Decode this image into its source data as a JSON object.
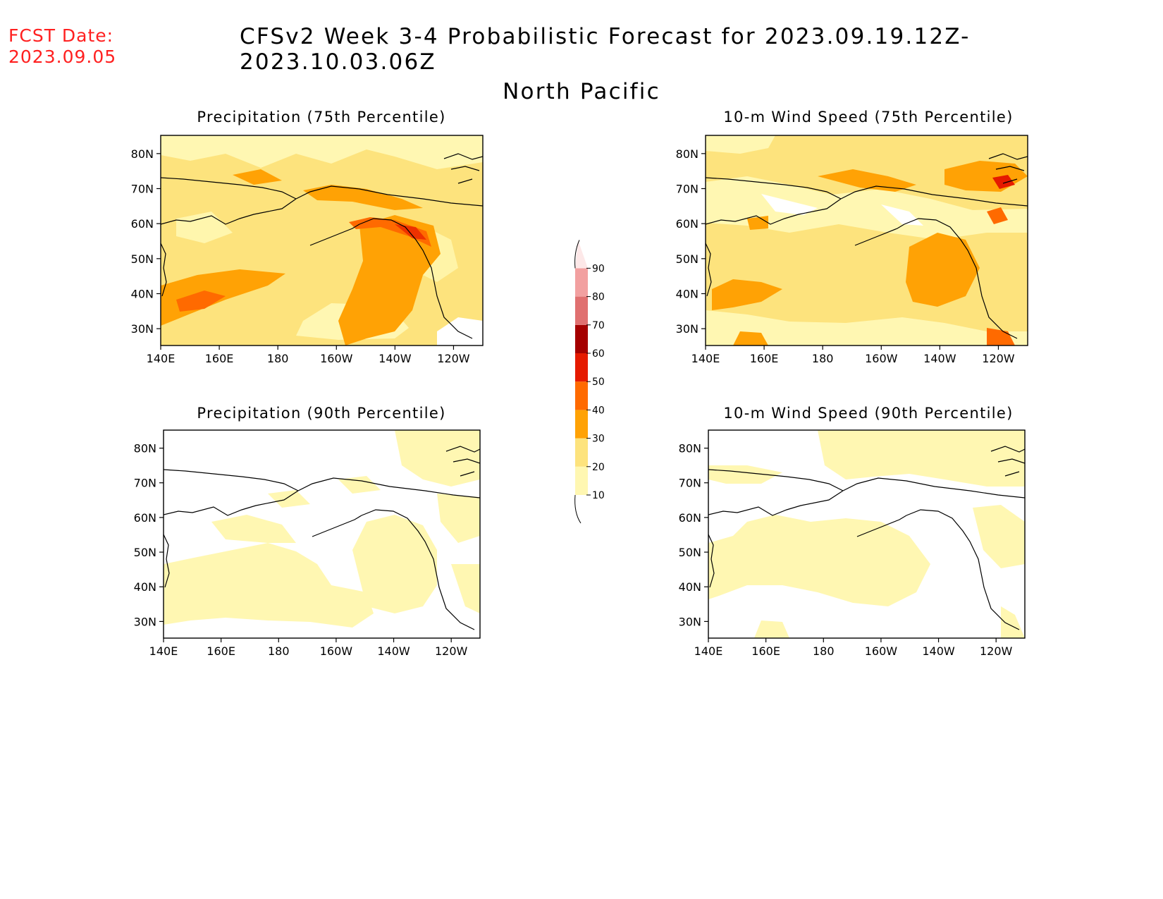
{
  "header": {
    "fcst_label": "FCST Date:",
    "fcst_date": "2023.09.05",
    "title": "CFSv2 Week 3-4 Probabilistic Forecast for 2023.09.19.12Z-2023.10.03.06Z",
    "subtitle": "North Pacific"
  },
  "colorbar": {
    "levels": [
      "10",
      "20",
      "30",
      "40",
      "50",
      "60",
      "70",
      "80",
      "90"
    ],
    "colors": [
      "#fff7b2",
      "#fde37d",
      "#ffa205",
      "#ff6a00",
      "#e51a00",
      "#a50000",
      "#e07070",
      "#f2a0a0",
      "#fde8e8"
    ]
  },
  "axes": {
    "lon_labels": [
      "140E",
      "160E",
      "180",
      "160W",
      "140W",
      "120W"
    ],
    "lat_labels": [
      "80N",
      "70N",
      "60N",
      "50N",
      "40N",
      "30N"
    ]
  },
  "panels": [
    {
      "id": "precip-75",
      "title": "Precipitation (75th Percentile)"
    },
    {
      "id": "wind-75",
      "title": "10-m Wind Speed (75th Percentile)"
    },
    {
      "id": "precip-90",
      "title": "Precipitation (90th Percentile)"
    },
    {
      "id": "wind-90",
      "title": "10-m Wind Speed (90th Percentile)"
    }
  ]
}
